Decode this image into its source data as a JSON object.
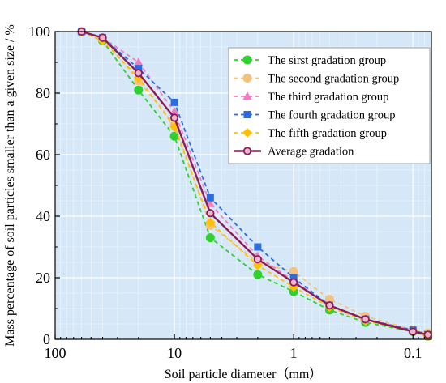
{
  "chart_data": {
    "type": "line",
    "title": "",
    "xlabel": "Soil particle diameter（mm）",
    "ylabel": "Mass percentage of soil particles smaller than a given size / %",
    "x_scale": "log",
    "x_reversed": true,
    "xlim": [
      100,
      0.07
    ],
    "ylim": [
      0,
      100
    ],
    "x_ticks": [
      100,
      10,
      1,
      0.1
    ],
    "x_tick_labels": [
      "100",
      "10",
      "1",
      "0.1"
    ],
    "y_ticks": [
      0,
      20,
      40,
      60,
      80,
      100
    ],
    "y_tick_labels": [
      "0",
      "20",
      "40",
      "60",
      "80",
      "100"
    ],
    "grid": true,
    "plot_background": "#d6e8f7",
    "legend_position": "top-right",
    "x": [
      60,
      40,
      20,
      10,
      5,
      2,
      1,
      0.5,
      0.25,
      0.1,
      0.075
    ],
    "series": [
      {
        "name": "The sirst gradation group",
        "color": "#2ed12e",
        "marker": "circle",
        "dashed": true,
        "values": [
          100,
          97,
          81,
          66,
          33,
          21,
          15.5,
          9.5,
          5.5,
          2.5,
          1
        ]
      },
      {
        "name": "The second gradation group",
        "color": "#f4c27a",
        "marker": "circle",
        "dashed": true,
        "values": [
          100,
          98,
          84,
          70,
          37,
          25,
          22,
          13,
          7.5,
          3,
          2
        ]
      },
      {
        "name": "The third gradation group",
        "color": "#f27bc3",
        "marker": "triangle",
        "dashed": true,
        "values": [
          100,
          98,
          90,
          74,
          44,
          27,
          19,
          11,
          6.5,
          3,
          1.5
        ]
      },
      {
        "name": "The fourth gradation group",
        "color": "#2b6de0",
        "marker": "square",
        "dashed": true,
        "values": [
          100,
          98,
          88,
          77,
          46,
          30,
          20,
          11,
          6.5,
          3,
          1.5
        ]
      },
      {
        "name": "The fifth gradation group",
        "color": "#ffc000",
        "marker": "diamond",
        "dashed": true,
        "values": [
          100,
          97,
          85,
          69,
          38,
          24,
          17,
          10.5,
          6,
          2.5,
          1
        ]
      },
      {
        "name": "Average gradation",
        "color": "#8e1b58",
        "marker": "open-circle",
        "dashed": false,
        "values": [
          100,
          98,
          86.5,
          72,
          41,
          26,
          18.5,
          11,
          6.5,
          2.5,
          1.5
        ]
      }
    ]
  }
}
